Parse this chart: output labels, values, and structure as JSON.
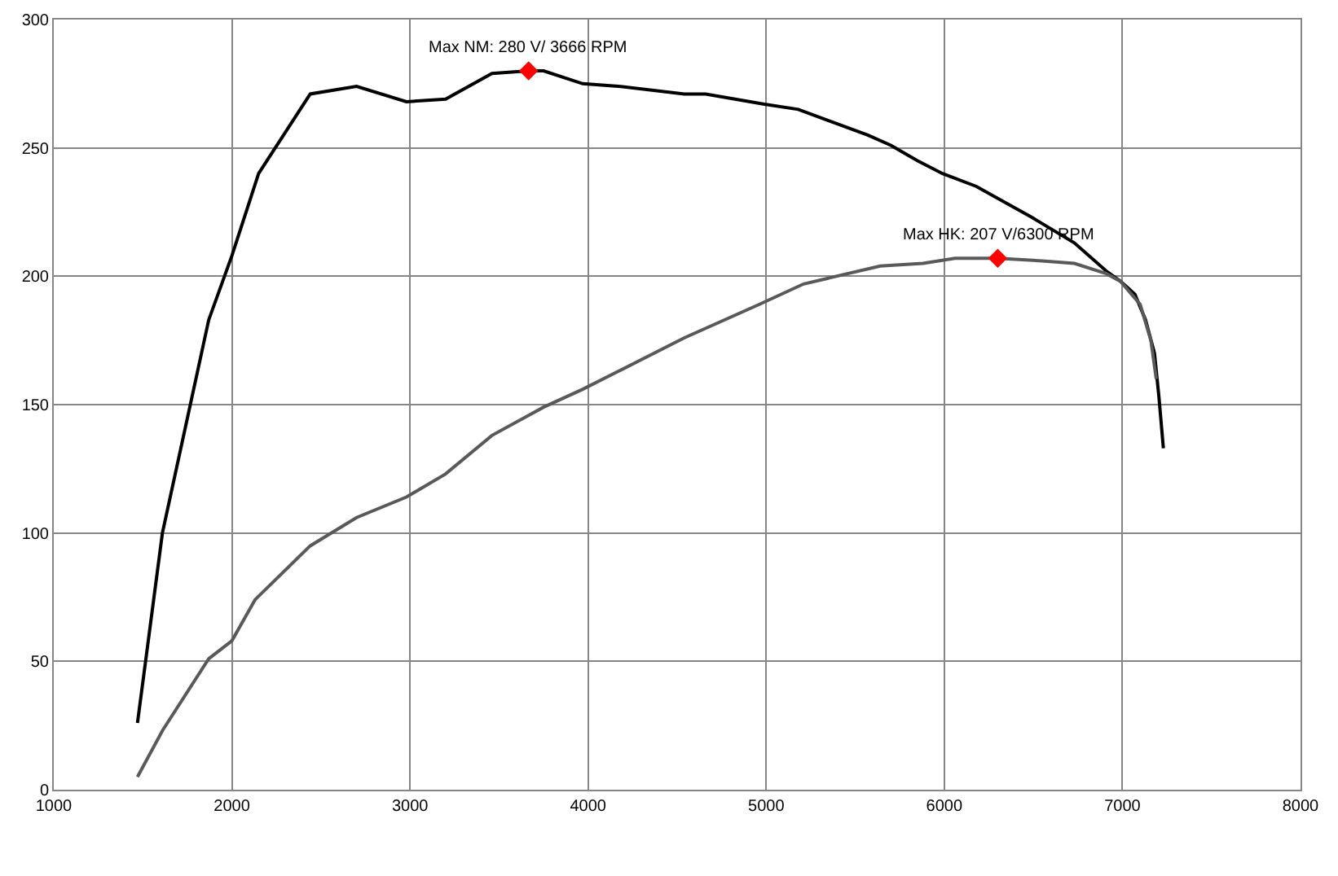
{
  "chart_data": {
    "type": "line",
    "series": [
      {
        "type": "line",
        "color": "#000000",
        "marker": "none",
        "x": [
          1470,
          1610,
          1870,
          2000,
          2150,
          2440,
          2700,
          2980,
          3200,
          3460,
          3666,
          3750,
          3970,
          4170,
          4540,
          4660,
          4990,
          5180,
          5570,
          5700,
          5850,
          5990,
          6180,
          6490,
          6730,
          6910,
          6990,
          7070,
          7130,
          7180,
          7205,
          7230
        ],
        "values": [
          26,
          100,
          183,
          208,
          240,
          271,
          274,
          268,
          269,
          279,
          280,
          280,
          275,
          274,
          271,
          271,
          267,
          265,
          255,
          251,
          245,
          240,
          235,
          223,
          213,
          202,
          198,
          193,
          183,
          170,
          153,
          133
        ]
      },
      {
        "type": "line",
        "color": "#595959",
        "marker": "none",
        "x": [
          1470,
          1610,
          1870,
          2000,
          2130,
          2440,
          2700,
          2980,
          3200,
          3460,
          3750,
          3970,
          4170,
          4540,
          4960,
          5210,
          5640,
          5880,
          6060,
          6300,
          6550,
          6730,
          6910,
          6990,
          7100,
          7160,
          7190
        ],
        "values": [
          5,
          23,
          51,
          58,
          74,
          95,
          106,
          114,
          123,
          138,
          149,
          156,
          163,
          176,
          189,
          197,
          204,
          205,
          207,
          207,
          206,
          205,
          201,
          198,
          189,
          175,
          160
        ]
      },
      {
        "type": "scatter",
        "color": "#ff0000",
        "marker": "diamond",
        "x": [
          3666,
          6300
        ],
        "values": [
          280,
          207
        ]
      }
    ],
    "xlim": [
      1000,
      8000
    ],
    "xticks": [
      1000,
      2000,
      3000,
      4000,
      5000,
      6000,
      7000,
      8000
    ],
    "ylim": [
      0,
      300
    ],
    "yticks": [
      0,
      50,
      100,
      150,
      200,
      250,
      300
    ],
    "grid": true,
    "annotations": [
      {
        "text": "Max NM: 280 V/ 3666 RPM",
        "x": 3666,
        "y": 280
      },
      {
        "text": "Max HK: 207 V/6300 RPM",
        "x": 6300,
        "y": 207
      }
    ]
  }
}
